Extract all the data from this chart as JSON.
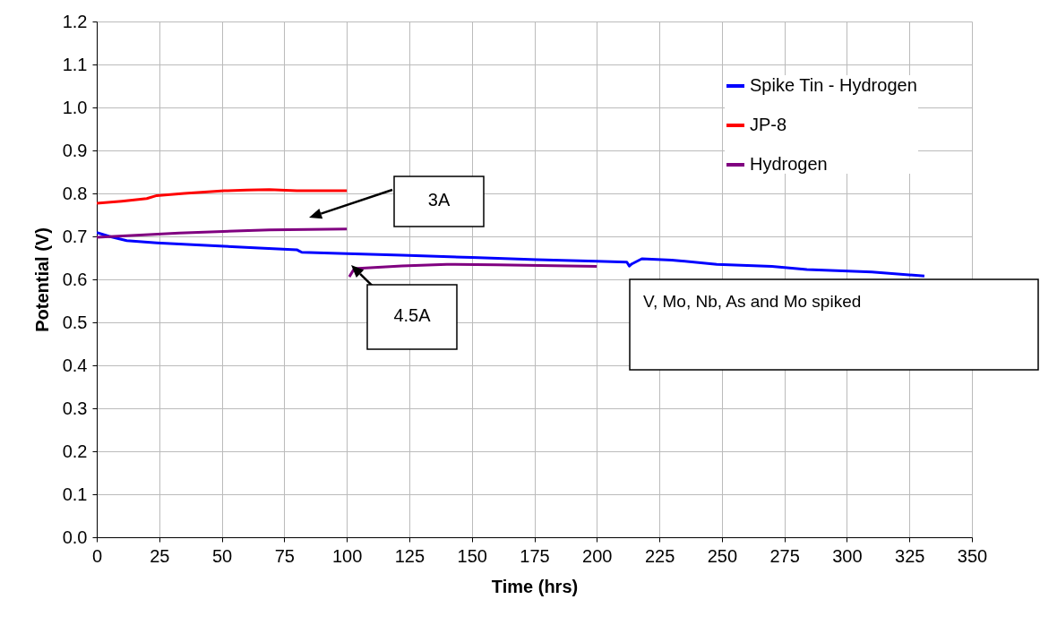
{
  "chart_data": {
    "type": "line",
    "xlabel": "Time (hrs)",
    "ylabel": "Potential (V)",
    "xlim": [
      0,
      350
    ],
    "xticks": [
      0,
      25,
      50,
      75,
      100,
      125,
      150,
      175,
      200,
      225,
      250,
      275,
      300,
      325,
      350
    ],
    "ylim": [
      0,
      1.2
    ],
    "yticks": [
      {
        "value": 0,
        "label": "0.0"
      },
      0.1,
      0.2,
      0.3,
      0.4,
      0.5,
      0.6,
      0.7,
      0.8,
      0.9,
      {
        "value": 1,
        "label": "1.0"
      },
      1.1,
      1.2
    ],
    "grid": true,
    "legend": "top right",
    "series": [
      {
        "name": "Spike Tin - Hydrogen",
        "color": "#0000ff",
        "x": [
          0,
          5,
          12,
          24,
          40,
          51,
          65,
          80,
          81,
          82,
          100,
          122,
          150,
          176,
          200,
          212,
          213,
          214,
          218,
          230,
          248,
          270,
          284,
          310,
          331
        ],
        "values": [
          0.709,
          0.7,
          0.69,
          0.685,
          0.68,
          0.677,
          0.673,
          0.669,
          0.666,
          0.663,
          0.66,
          0.656,
          0.651,
          0.646,
          0.642,
          0.64,
          0.631,
          0.636,
          0.648,
          0.645,
          0.635,
          0.63,
          0.623,
          0.617,
          0.608
        ]
      },
      {
        "name": "JP-8",
        "color": "#ff0000",
        "x": [
          0,
          10,
          20,
          24,
          35,
          51,
          60,
          69,
          80,
          100
        ],
        "values": [
          0.777,
          0.782,
          0.788,
          0.795,
          0.8,
          0.806,
          0.808,
          0.809,
          0.806,
          0.806
        ]
      },
      {
        "name": "Hydrogen",
        "color": "#800080",
        "x": [
          0,
          33,
          69,
          100,
          100.5,
          101,
          103,
          122,
          140,
          160,
          200
        ],
        "values": [
          0.698,
          0.708,
          0.715,
          0.717,
          null,
          0.606,
          0.625,
          0.631,
          0.635,
          0.634,
          0.63
        ]
      }
    ],
    "annotations": [
      "3A",
      "4.5A",
      "V, Mo, Nb, As and Mo spiked"
    ]
  }
}
